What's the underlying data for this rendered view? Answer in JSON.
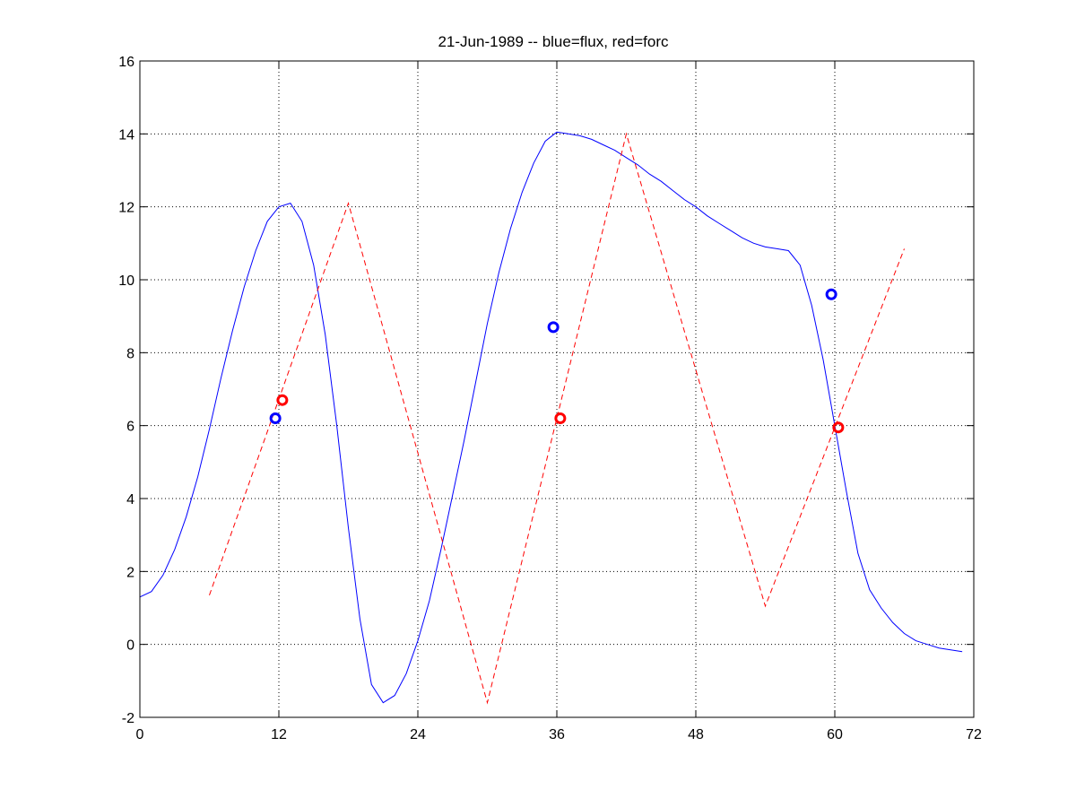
{
  "chart_data": {
    "type": "line",
    "title": "21-Jun-1989 -- blue=flux, red=forc",
    "xlabel": "",
    "ylabel": "",
    "xlim": [
      0,
      72
    ],
    "ylim": [
      -2,
      16
    ],
    "xticks": [
      0,
      12,
      24,
      36,
      48,
      60,
      72
    ],
    "yticks": [
      -2,
      0,
      2,
      4,
      6,
      8,
      10,
      12,
      14,
      16
    ],
    "grid": true,
    "series": [
      {
        "color": "#0000ff",
        "style": "solid",
        "x": [
          0,
          1,
          2,
          3,
          4,
          5,
          6,
          7,
          8,
          9,
          10,
          11,
          12,
          13,
          14,
          15,
          16,
          17,
          18,
          19,
          20,
          21,
          22,
          23,
          24,
          25,
          26,
          27,
          28,
          29,
          30,
          31,
          32,
          33,
          34,
          35,
          36,
          37,
          38,
          39,
          40,
          41,
          42,
          43,
          44,
          45,
          46,
          47,
          48,
          49,
          50,
          51,
          52,
          53,
          54,
          55,
          56,
          57,
          58,
          59,
          60,
          61,
          62,
          63,
          64,
          65,
          66,
          67,
          68,
          69,
          70,
          71
        ],
        "y": [
          1.3,
          1.45,
          1.9,
          2.6,
          3.5,
          4.6,
          5.9,
          7.3,
          8.6,
          9.8,
          10.8,
          11.6,
          12.0,
          12.1,
          11.6,
          10.4,
          8.5,
          6.0,
          3.2,
          0.7,
          -1.1,
          -1.6,
          -1.4,
          -0.8,
          0.1,
          1.2,
          2.6,
          4.1,
          5.6,
          7.2,
          8.8,
          10.2,
          11.4,
          12.4,
          13.2,
          13.8,
          14.05,
          14.0,
          13.95,
          13.85,
          13.7,
          13.55,
          13.35,
          13.15,
          12.9,
          12.7,
          12.45,
          12.2,
          12.0,
          11.75,
          11.55,
          11.35,
          11.15,
          11.0,
          10.9,
          10.85,
          10.8,
          10.4,
          9.3,
          7.8,
          6.0,
          4.2,
          2.5,
          1.5,
          1.0,
          0.6,
          0.3,
          0.1,
          0.0,
          -0.1,
          -0.15,
          -0.2
        ]
      },
      {
        "color": "#ff0000",
        "style": "dashed",
        "x": [
          6,
          18,
          30,
          42,
          54,
          66
        ],
        "y": [
          1.35,
          12.1,
          -1.6,
          14.0,
          1.05,
          10.85
        ]
      },
      {
        "color": "#0000ff",
        "style": "markers",
        "x": [
          11.7,
          35.7,
          59.7
        ],
        "y": [
          6.2,
          8.7,
          9.6
        ]
      },
      {
        "color": "#ff0000",
        "style": "markers",
        "x": [
          12.3,
          36.3,
          60.3
        ],
        "y": [
          6.7,
          6.2,
          5.95
        ]
      }
    ]
  }
}
